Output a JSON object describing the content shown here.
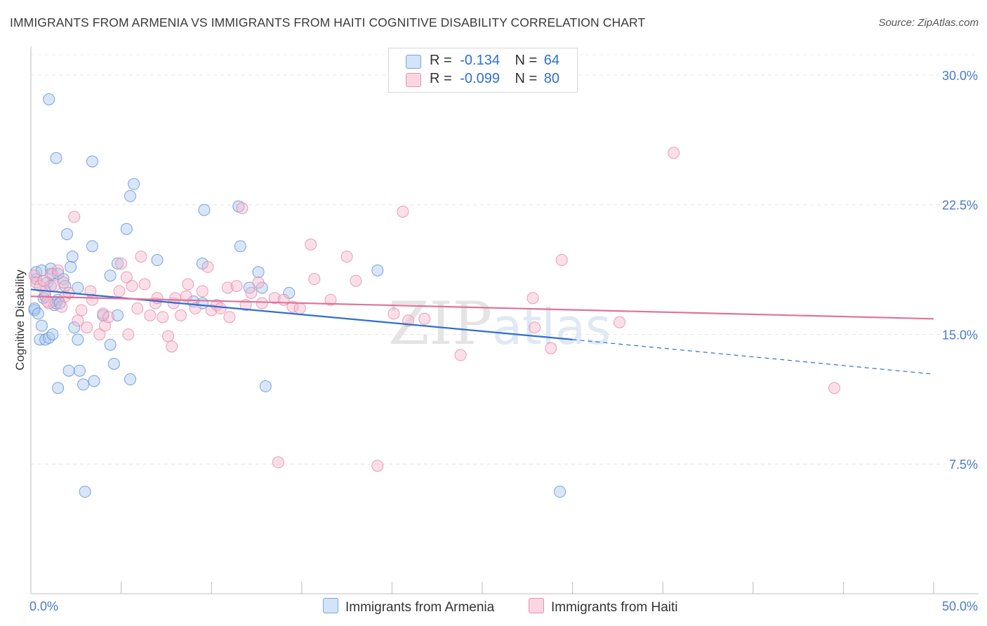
{
  "title": "IMMIGRANTS FROM ARMENIA VS IMMIGRANTS FROM HAITI COGNITIVE DISABILITY CORRELATION CHART",
  "source": "Source: ZipAtlas.com",
  "watermark": "ZIPatlas",
  "stats": [
    {
      "r_label": "R =",
      "r_value": "-0.134",
      "n_label": "N =",
      "n_value": "64",
      "color": "#aac8f0"
    },
    {
      "r_label": "R =",
      "r_value": "-0.099",
      "n_label": "N =",
      "n_value": "80",
      "color": "#f6b9cd"
    }
  ],
  "legend": [
    {
      "label": "Immigrants from Armenia",
      "color": "#aac8f0"
    },
    {
      "label": "Immigrants from Haiti",
      "color": "#f6b9cd"
    }
  ],
  "chart_data": {
    "type": "scatter",
    "ylabel": "Cognitive Disability",
    "xlim": [
      0,
      50
    ],
    "ylim": [
      0,
      31.5
    ],
    "x_tick_labels": [
      "0.0%",
      "50.0%"
    ],
    "y_ticks": [
      {
        "value": 7.5,
        "label": "7.5%"
      },
      {
        "value": 15.0,
        "label": "15.0%"
      },
      {
        "value": 22.5,
        "label": "22.5%"
      },
      {
        "value": 30.0,
        "label": "30.0%"
      }
    ],
    "grid": true,
    "series": [
      {
        "name": "Immigrants from Armenia",
        "color": "#aac8f0",
        "edge": "#5a8fd8",
        "trend": {
          "x0": 0,
          "y0": 17.6,
          "x1": 30,
          "y1": 14.7,
          "dash_x1": 50,
          "dash_y1": 12.7,
          "color": "#2f6fce"
        },
        "points": [
          [
            0.2,
            16.4
          ],
          [
            0.2,
            16.5
          ],
          [
            0.3,
            18.2
          ],
          [
            0.3,
            18.6
          ],
          [
            0.4,
            16.2
          ],
          [
            0.5,
            14.7
          ],
          [
            0.6,
            18.7
          ],
          [
            0.6,
            15.5
          ],
          [
            0.7,
            17.1
          ],
          [
            0.8,
            17.2
          ],
          [
            0.8,
            14.7
          ],
          [
            0.9,
            18.0
          ],
          [
            1.0,
            14.8
          ],
          [
            1.1,
            18.8
          ],
          [
            1.1,
            17.8
          ],
          [
            1.2,
            15.0
          ],
          [
            1.2,
            18.5
          ],
          [
            1.3,
            16.7
          ],
          [
            1.4,
            16.8
          ],
          [
            1.5,
            11.9
          ],
          [
            1.4,
            25.2
          ],
          [
            1.5,
            17.0
          ],
          [
            1.5,
            18.5
          ],
          [
            1.6,
            16.8
          ],
          [
            1.8,
            18.2
          ],
          [
            1.9,
            17.8
          ],
          [
            2.0,
            20.8
          ],
          [
            2.1,
            12.9
          ],
          [
            2.2,
            18.9
          ],
          [
            2.3,
            19.5
          ],
          [
            2.4,
            15.4
          ],
          [
            2.6,
            14.7
          ],
          [
            2.6,
            17.7
          ],
          [
            2.7,
            12.9
          ],
          [
            2.9,
            12.1
          ],
          [
            3.0,
            5.9
          ],
          [
            3.4,
            25.0
          ],
          [
            3.4,
            20.1
          ],
          [
            3.5,
            12.3
          ],
          [
            4.0,
            16.1
          ],
          [
            4.4,
            18.4
          ],
          [
            4.4,
            14.4
          ],
          [
            4.6,
            13.3
          ],
          [
            4.8,
            16.1
          ],
          [
            4.8,
            19.1
          ],
          [
            5.3,
            21.1
          ],
          [
            5.5,
            23.0
          ],
          [
            5.5,
            12.4
          ],
          [
            5.7,
            23.7
          ],
          [
            7.0,
            19.3
          ],
          [
            9.0,
            16.9
          ],
          [
            9.5,
            19.1
          ],
          [
            9.5,
            16.8
          ],
          [
            9.6,
            22.2
          ],
          [
            11.5,
            22.4
          ],
          [
            11.6,
            20.1
          ],
          [
            12.1,
            17.7
          ],
          [
            12.6,
            18.6
          ],
          [
            12.8,
            17.7
          ],
          [
            13.0,
            12.0
          ],
          [
            14.3,
            17.4
          ],
          [
            19.2,
            18.7
          ],
          [
            29.3,
            5.9
          ],
          [
            1.0,
            28.6
          ]
        ]
      },
      {
        "name": "Immigrants from Haiti",
        "color": "#f6b9cd",
        "edge": "#e48aa7",
        "trend": {
          "x0": 0,
          "y0": 17.2,
          "x1": 50,
          "y1": 15.9,
          "color": "#e0729a"
        },
        "points": [
          [
            0.2,
            18.4
          ],
          [
            0.3,
            18.0
          ],
          [
            0.5,
            17.8
          ],
          [
            0.7,
            18.1
          ],
          [
            0.8,
            17.5
          ],
          [
            1.0,
            16.8
          ],
          [
            1.1,
            18.5
          ],
          [
            1.3,
            17.8
          ],
          [
            1.5,
            18.7
          ],
          [
            1.7,
            16.6
          ],
          [
            1.8,
            18.0
          ],
          [
            1.9,
            17.2
          ],
          [
            2.1,
            17.4
          ],
          [
            2.4,
            21.8
          ],
          [
            2.6,
            15.8
          ],
          [
            2.8,
            16.4
          ],
          [
            3.1,
            15.4
          ],
          [
            3.3,
            17.5
          ],
          [
            3.4,
            17.0
          ],
          [
            3.8,
            15.0
          ],
          [
            4.0,
            16.2
          ],
          [
            4.1,
            15.5
          ],
          [
            4.3,
            16.0
          ],
          [
            4.9,
            17.5
          ],
          [
            5.0,
            19.1
          ],
          [
            5.3,
            18.3
          ],
          [
            5.4,
            15.0
          ],
          [
            5.6,
            17.8
          ],
          [
            5.9,
            16.5
          ],
          [
            6.1,
            19.5
          ],
          [
            6.3,
            17.9
          ],
          [
            6.6,
            16.1
          ],
          [
            6.9,
            16.8
          ],
          [
            7.0,
            17.1
          ],
          [
            7.3,
            16.0
          ],
          [
            7.6,
            14.9
          ],
          [
            7.8,
            14.3
          ],
          [
            7.9,
            16.8
          ],
          [
            8.0,
            17.1
          ],
          [
            8.3,
            16.1
          ],
          [
            8.6,
            17.2
          ],
          [
            8.7,
            17.9
          ],
          [
            9.1,
            16.5
          ],
          [
            9.5,
            17.5
          ],
          [
            9.8,
            18.9
          ],
          [
            10.0,
            16.4
          ],
          [
            10.3,
            16.7
          ],
          [
            10.5,
            16.5
          ],
          [
            10.9,
            17.7
          ],
          [
            11.0,
            16.0
          ],
          [
            11.4,
            17.8
          ],
          [
            11.7,
            22.3
          ],
          [
            11.9,
            16.7
          ],
          [
            12.2,
            17.4
          ],
          [
            12.6,
            18.0
          ],
          [
            12.8,
            16.8
          ],
          [
            13.5,
            17.1
          ],
          [
            13.7,
            7.6
          ],
          [
            14.0,
            17.0
          ],
          [
            14.5,
            16.6
          ],
          [
            14.9,
            16.5
          ],
          [
            15.5,
            20.2
          ],
          [
            15.7,
            18.2
          ],
          [
            16.6,
            17.0
          ],
          [
            17.5,
            19.5
          ],
          [
            18.0,
            18.1
          ],
          [
            19.2,
            7.4
          ],
          [
            20.1,
            16.2
          ],
          [
            20.6,
            22.1
          ],
          [
            20.9,
            15.8
          ],
          [
            21.8,
            15.9
          ],
          [
            23.8,
            13.8
          ],
          [
            27.8,
            17.1
          ],
          [
            27.9,
            15.4
          ],
          [
            28.8,
            14.2
          ],
          [
            29.4,
            19.3
          ],
          [
            32.6,
            15.7
          ],
          [
            35.6,
            25.5
          ],
          [
            44.5,
            11.9
          ],
          [
            0.9,
            16.9
          ]
        ]
      }
    ]
  }
}
